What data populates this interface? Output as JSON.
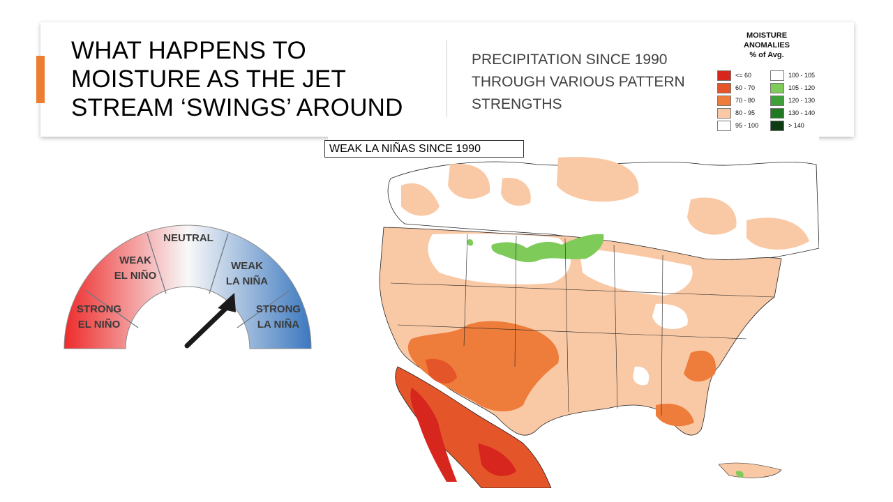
{
  "title": "WHAT HAPPENS TO MOISTURE AS THE JET STREAM ‘SWINGS’ AROUND",
  "subtitle": "PRECIPITATION SINCE 1990 THROUGH VARIOUS PATTERN STRENGTHS",
  "map_title": "WEAK LA NIÑAS SINCE 1990",
  "legend": {
    "title_line1": "MOISTURE",
    "title_line2": "ANOMALIES",
    "title_line3": "% of Avg.",
    "left": [
      {
        "label": "<= 60",
        "color": "#D7261E"
      },
      {
        "label": "60 - 70",
        "color": "#E5552A"
      },
      {
        "label": "70 - 80",
        "color": "#EE7C3A"
      },
      {
        "label": "80 - 95",
        "color": "#F9C9A6"
      },
      {
        "label": "95 - 100",
        "color": "#FFFFFF"
      }
    ],
    "right": [
      {
        "label": "100 - 105",
        "color": "#FFFFFF"
      },
      {
        "label": "105 - 120",
        "color": "#7FCB5A"
      },
      {
        "label": "120 - 130",
        "color": "#3FA03A"
      },
      {
        "label": "130 - 140",
        "color": "#1F7A22"
      },
      {
        "label": "> 140",
        "color": "#0D3B12"
      }
    ]
  },
  "gauge": {
    "strong_el_nino_1": "STRONG",
    "strong_el_nino_2": "EL NIÑO",
    "weak_el_nino_1": "WEAK",
    "weak_el_nino_2": "EL NIÑO",
    "neutral": "NEUTRAL",
    "weak_la_nina_1": "WEAK",
    "weak_la_nina_2": "LA NIÑA",
    "strong_la_nina_1": "STRONG",
    "strong_la_nina_2": "LA NIÑA",
    "pointer_state": "WEAK LA NIÑA"
  }
}
